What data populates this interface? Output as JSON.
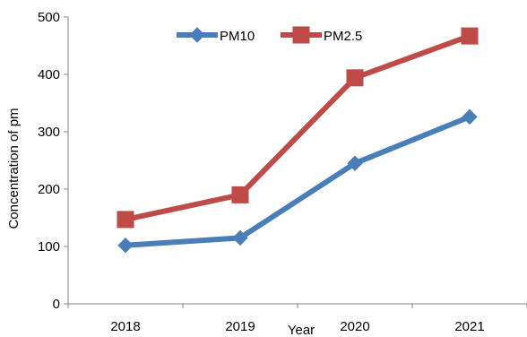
{
  "chart_data": {
    "type": "line",
    "title": "",
    "xlabel": "Year",
    "ylabel": "Concentration of pm",
    "categories": [
      "2018",
      "2019",
      "2020",
      "2021"
    ],
    "ylim": [
      0,
      500
    ],
    "yticks": [
      0,
      100,
      200,
      300,
      400,
      500
    ],
    "grid": false,
    "legend_position": "top",
    "series": [
      {
        "name": "PM10",
        "values": [
          102,
          115,
          245,
          326
        ],
        "color": "#4a7ebb",
        "marker": "diamond"
      },
      {
        "name": "PM2.5",
        "values": [
          147,
          190,
          394,
          467
        ],
        "color": "#be4b48",
        "marker": "square"
      }
    ]
  }
}
